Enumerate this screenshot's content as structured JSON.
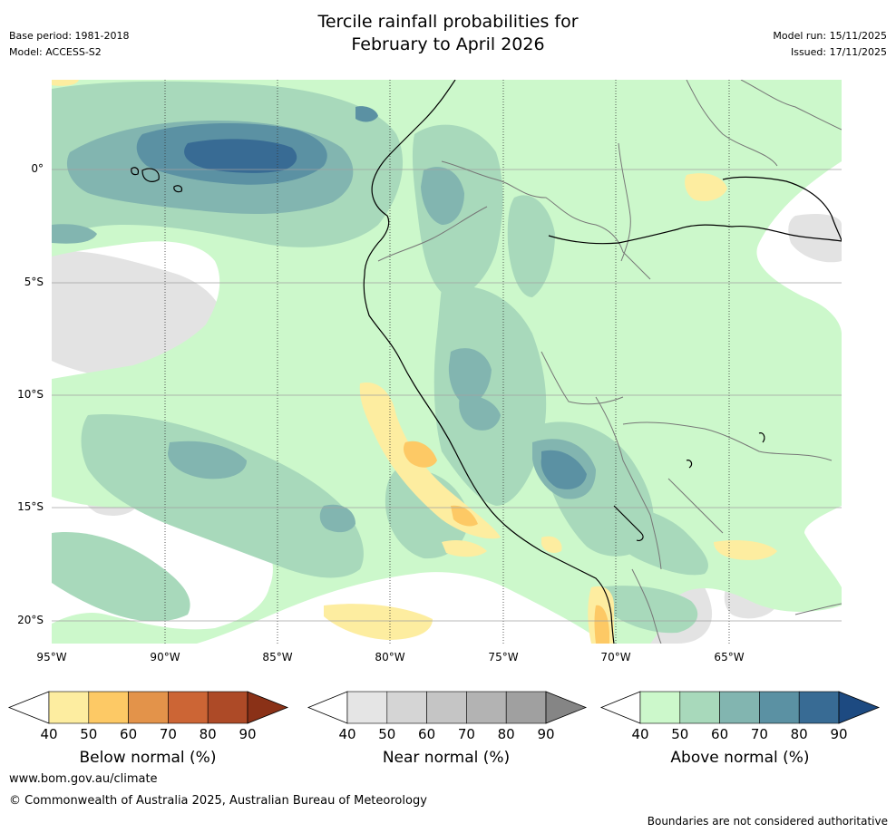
{
  "title": {
    "line1": "Tercile rainfall probabilities for",
    "line2": "February to April 2026"
  },
  "meta": {
    "base_period": "Base period: 1981-2018",
    "model": "Model: ACCESS-S2",
    "model_run": "Model run: 15/11/2025",
    "issued": "Issued: 17/11/2025"
  },
  "map": {
    "lat_labels": [
      "0°",
      "5°S",
      "10°S",
      "15°S",
      "20°S"
    ],
    "lon_labels": [
      "95°W",
      "90°W",
      "85°W",
      "80°W",
      "75°W",
      "70°W",
      "65°W"
    ]
  },
  "colorbars": [
    {
      "name": "below",
      "title": "Below normal (%)",
      "ticks": [
        "40",
        "50",
        "60",
        "70",
        "80",
        "90"
      ],
      "colors": [
        "#fdeda0",
        "#fdc965",
        "#e3934a",
        "#cc6535",
        "#ad4a27",
        "#8a3117"
      ]
    },
    {
      "name": "near",
      "title": "Near normal (%)",
      "ticks": [
        "40",
        "50",
        "60",
        "70",
        "80",
        "90"
      ],
      "colors": [
        "#e5e5e5",
        "#d5d5d5",
        "#c5c5c5",
        "#b3b3b3",
        "#a0a0a0",
        "#858585"
      ]
    },
    {
      "name": "above",
      "title": "Above normal (%)",
      "ticks": [
        "40",
        "50",
        "60",
        "70",
        "80",
        "90"
      ],
      "colors": [
        "#ccf8cb",
        "#a8d9bb",
        "#82b5b0",
        "#5b91a3",
        "#386b94",
        "#1d4a81"
      ]
    }
  ],
  "footer": {
    "url": "www.bom.gov.au/climate",
    "copyright": "© Commonwealth of Australia 2025, Australian Bureau of Meteorology",
    "disclaimer": "Boundaries are not considered authoritative"
  }
}
